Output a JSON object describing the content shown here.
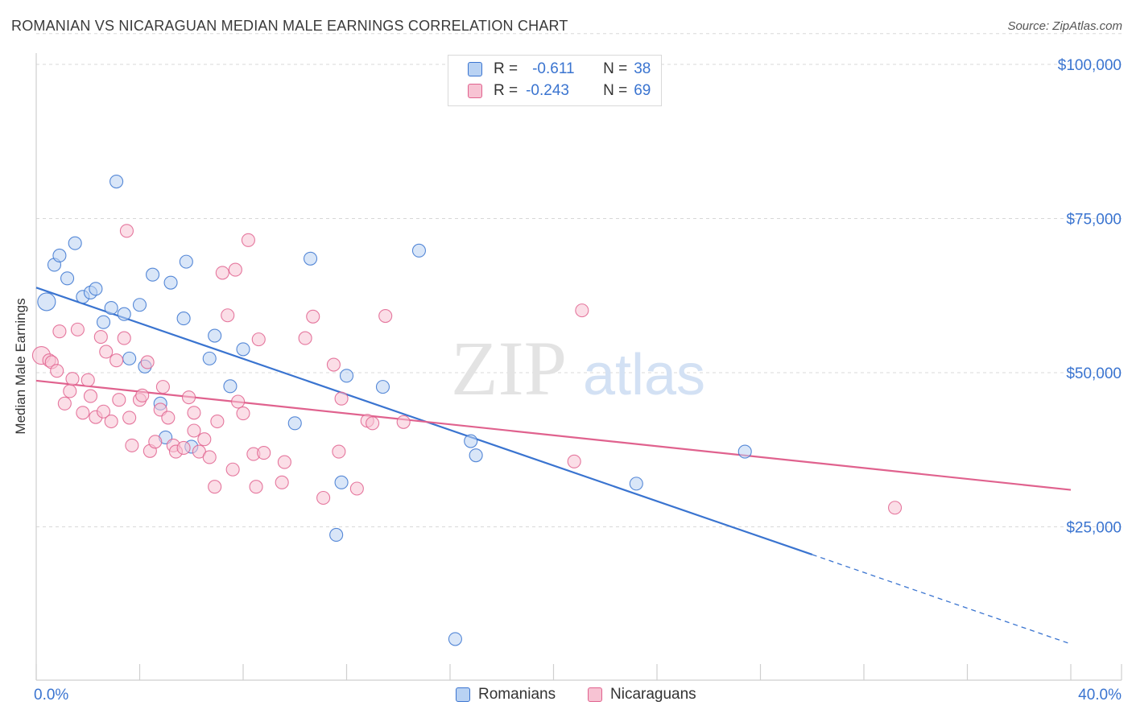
{
  "title": "ROMANIAN VS NICARAGUAN MEDIAN MALE EARNINGS CORRELATION CHART",
  "source": "Source: ZipAtlas.com",
  "watermark": {
    "zip": "ZIP",
    "atlas": "atlas"
  },
  "colors": {
    "blue": "#3a74d0",
    "blue_fill": "#b9d2f3",
    "pink": "#e0628e",
    "pink_fill": "#f7c3d3",
    "grid": "#d8d8d8",
    "tick_label": "#3a74d0"
  },
  "legend": {
    "r_label": "R =",
    "n_label": "N =",
    "rows": [
      {
        "r": "-0.611",
        "n": "38"
      },
      {
        "r": "-0.243",
        "n": "69"
      }
    ]
  },
  "bottom_legend": [
    "Romanians",
    "Nicaraguans"
  ],
  "chart_data": {
    "type": "scatter",
    "xlabel": "",
    "ylabel": "Median Male Earnings",
    "xlim": [
      0,
      40
    ],
    "ylim": [
      0,
      105000
    ],
    "x_tick_labels": [
      "0.0%",
      "40.0%"
    ],
    "y_ticks": [
      25000,
      50000,
      75000,
      100000
    ],
    "y_tick_labels": [
      "$25,000",
      "$50,000",
      "$75,000",
      "$100,000"
    ],
    "grid": true,
    "legend_position": "top-center",
    "series": [
      {
        "name": "Romanians",
        "color": "#3a74d0",
        "regression": {
          "x0": 0,
          "y0": 63800,
          "x1": 30,
          "y1": 20500,
          "dash_to_x": 40,
          "dash_to_y": 6000
        },
        "points": [
          [
            0.4,
            61500,
            1
          ],
          [
            0.7,
            67500,
            0
          ],
          [
            0.9,
            69000,
            0
          ],
          [
            1.2,
            65300,
            0
          ],
          [
            1.5,
            71000,
            0
          ],
          [
            1.8,
            62300,
            0
          ],
          [
            2.1,
            63000,
            0
          ],
          [
            2.3,
            63600,
            0
          ],
          [
            2.6,
            58200,
            0
          ],
          [
            2.9,
            60500,
            0
          ],
          [
            3.1,
            81000,
            0
          ],
          [
            3.4,
            59500,
            0
          ],
          [
            3.6,
            52300,
            0
          ],
          [
            4.0,
            61000,
            0
          ],
          [
            4.2,
            51000,
            0
          ],
          [
            4.5,
            65900,
            0
          ],
          [
            4.8,
            45000,
            0
          ],
          [
            5.0,
            39500,
            0
          ],
          [
            5.2,
            64600,
            0
          ],
          [
            5.7,
            58800,
            0
          ],
          [
            5.8,
            68000,
            0
          ],
          [
            6.0,
            38000,
            0
          ],
          [
            6.7,
            52300,
            0
          ],
          [
            6.9,
            56000,
            0
          ],
          [
            7.5,
            47800,
            0
          ],
          [
            8.0,
            53800,
            0
          ],
          [
            10.0,
            41800,
            0
          ],
          [
            10.6,
            68500,
            0
          ],
          [
            11.8,
            32200,
            0
          ],
          [
            12.0,
            49500,
            0
          ],
          [
            11.6,
            23700,
            0
          ],
          [
            13.4,
            47700,
            0
          ],
          [
            14.8,
            69800,
            0
          ],
          [
            16.8,
            38900,
            0
          ],
          [
            23.2,
            32000,
            0
          ],
          [
            17.0,
            36600,
            0
          ],
          [
            27.4,
            37200,
            0
          ],
          [
            16.2,
            6800,
            0
          ]
        ]
      },
      {
        "name": "Nicaraguans",
        "color": "#e0628e",
        "regression": {
          "x0": 0,
          "y0": 48700,
          "x1": 40,
          "y1": 31000
        },
        "points": [
          [
            0.2,
            52800,
            1
          ],
          [
            0.5,
            52000,
            0
          ],
          [
            0.6,
            51700,
            0
          ],
          [
            0.8,
            50300,
            0
          ],
          [
            0.9,
            56700,
            0
          ],
          [
            1.1,
            45000,
            0
          ],
          [
            1.3,
            47000,
            0
          ],
          [
            1.4,
            49000,
            0
          ],
          [
            1.6,
            57000,
            0
          ],
          [
            1.8,
            43500,
            0
          ],
          [
            2.0,
            48800,
            0
          ],
          [
            2.1,
            46200,
            0
          ],
          [
            2.3,
            42800,
            0
          ],
          [
            2.5,
            55800,
            0
          ],
          [
            2.6,
            43700,
            0
          ],
          [
            2.7,
            53400,
            0
          ],
          [
            2.9,
            42100,
            0
          ],
          [
            3.1,
            52000,
            0
          ],
          [
            3.2,
            45600,
            0
          ],
          [
            3.4,
            55600,
            0
          ],
          [
            3.5,
            73000,
            0
          ],
          [
            3.6,
            42700,
            0
          ],
          [
            3.7,
            38200,
            0
          ],
          [
            4.0,
            45600,
            0
          ],
          [
            4.1,
            46300,
            0
          ],
          [
            4.3,
            51700,
            0
          ],
          [
            4.4,
            37300,
            0
          ],
          [
            4.6,
            38800,
            0
          ],
          [
            4.8,
            44000,
            0
          ],
          [
            4.9,
            47700,
            0
          ],
          [
            5.1,
            42700,
            0
          ],
          [
            5.3,
            38200,
            0
          ],
          [
            5.4,
            37200,
            0
          ],
          [
            5.7,
            37800,
            0
          ],
          [
            5.9,
            46000,
            0
          ],
          [
            6.1,
            43500,
            0
          ],
          [
            6.1,
            40600,
            0
          ],
          [
            6.3,
            37200,
            0
          ],
          [
            6.5,
            39200,
            0
          ],
          [
            6.7,
            36300,
            0
          ],
          [
            6.9,
            31500,
            0
          ],
          [
            7.0,
            42100,
            0
          ],
          [
            7.2,
            66200,
            0
          ],
          [
            7.4,
            59300,
            0
          ],
          [
            7.6,
            34300,
            0
          ],
          [
            7.7,
            66700,
            0
          ],
          [
            7.8,
            45300,
            0
          ],
          [
            8.0,
            43400,
            0
          ],
          [
            8.2,
            71500,
            0
          ],
          [
            8.4,
            36800,
            0
          ],
          [
            8.5,
            31500,
            0
          ],
          [
            8.6,
            55400,
            0
          ],
          [
            8.8,
            37000,
            0
          ],
          [
            9.5,
            32200,
            0
          ],
          [
            9.6,
            35500,
            0
          ],
          [
            10.4,
            55600,
            0
          ],
          [
            10.7,
            59100,
            0
          ],
          [
            11.1,
            29700,
            0
          ],
          [
            11.5,
            51300,
            0
          ],
          [
            11.7,
            37200,
            0
          ],
          [
            11.8,
            45800,
            0
          ],
          [
            12.4,
            31200,
            0
          ],
          [
            12.8,
            42200,
            0
          ],
          [
            13.0,
            41800,
            0
          ],
          [
            13.5,
            59200,
            0
          ],
          [
            20.8,
            35600,
            0
          ],
          [
            21.1,
            60100,
            0
          ],
          [
            33.2,
            28100,
            0
          ],
          [
            14.2,
            42000,
            0
          ]
        ]
      }
    ]
  }
}
